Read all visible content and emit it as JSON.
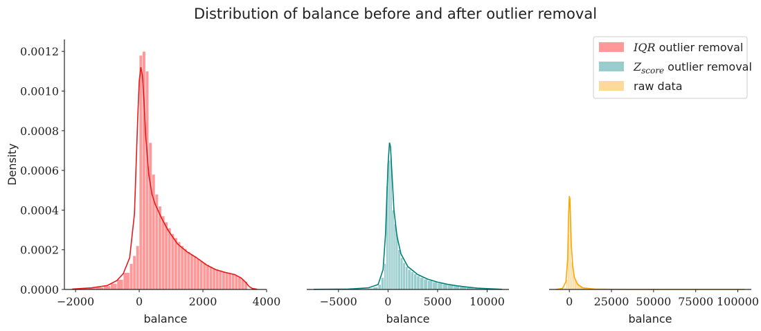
{
  "figure_title": "Distribution of balance before and after outlier removal",
  "legend": {
    "placement": "top-right",
    "entries": [
      {
        "math": "IQR",
        "sub": "",
        "text": " outlier removal",
        "color": "#ff9999"
      },
      {
        "math": "Z",
        "sub": "score",
        "text": " outlier removal",
        "color": "#99cccc"
      },
      {
        "math": "",
        "sub": "",
        "text": "raw data",
        "color": "#ffd99a"
      }
    ]
  },
  "chart_data": [
    {
      "type": "area",
      "title": "",
      "xlabel": "balance",
      "ylabel": "Density",
      "xlim": [
        -2350,
        4000
      ],
      "ylim": [
        0,
        0.00126
      ],
      "xticks": [
        -2000,
        0,
        2000,
        4000
      ],
      "xtick_labels": [
        "−2000",
        "0",
        "2000",
        "4000"
      ],
      "yticks": [
        0,
        0.0002,
        0.0004,
        0.0006,
        0.0008,
        0.001,
        0.0012
      ],
      "ytick_labels": [
        "0.0000",
        "0.0002",
        "0.0004",
        "0.0006",
        "0.0008",
        "0.0010",
        "0.0012"
      ],
      "series": [
        {
          "name": "IQR outlier removal",
          "hist_color": "#ff9999",
          "line_color": "#e41a1c",
          "bins": [
            {
              "x": -2125,
              "w": 250,
              "y": 5e-06
            },
            {
              "x": -1875,
              "w": 250,
              "y": 7e-06
            },
            {
              "x": -1625,
              "w": 250,
              "y": 9e-06
            },
            {
              "x": -1375,
              "w": 250,
              "y": 1.2e-05
            },
            {
              "x": -1125,
              "w": 250,
              "y": 1.8e-05
            },
            {
              "x": -900,
              "w": 200,
              "y": 3e-05
            },
            {
              "x": -700,
              "w": 200,
              "y": 5e-05
            },
            {
              "x": -500,
              "w": 200,
              "y": 8.5e-05
            },
            {
              "x": -300,
              "w": 100,
              "y": 0.00013
            },
            {
              "x": -200,
              "w": 100,
              "y": 0.00017
            },
            {
              "x": -100,
              "w": 100,
              "y": 0.00022
            },
            {
              "x": 0,
              "w": 100,
              "y": 0.00118
            },
            {
              "x": 100,
              "w": 100,
              "y": 0.0012
            },
            {
              "x": 200,
              "w": 100,
              "y": 0.0011
            },
            {
              "x": 300,
              "w": 100,
              "y": 0.00074
            },
            {
              "x": 400,
              "w": 100,
              "y": 0.00058
            },
            {
              "x": 500,
              "w": 100,
              "y": 0.00048
            },
            {
              "x": 600,
              "w": 100,
              "y": 0.00042
            },
            {
              "x": 700,
              "w": 100,
              "y": 0.00037
            },
            {
              "x": 800,
              "w": 100,
              "y": 0.00034
            },
            {
              "x": 900,
              "w": 100,
              "y": 0.00031
            },
            {
              "x": 1000,
              "w": 100,
              "y": 0.00028
            },
            {
              "x": 1100,
              "w": 100,
              "y": 0.00026
            },
            {
              "x": 1200,
              "w": 100,
              "y": 0.00024
            },
            {
              "x": 1300,
              "w": 100,
              "y": 0.00022
            },
            {
              "x": 1400,
              "w": 100,
              "y": 0.000205
            },
            {
              "x": 1500,
              "w": 100,
              "y": 0.00019
            },
            {
              "x": 1600,
              "w": 100,
              "y": 0.000178
            },
            {
              "x": 1700,
              "w": 100,
              "y": 0.000168
            },
            {
              "x": 1800,
              "w": 100,
              "y": 0.000155
            },
            {
              "x": 1900,
              "w": 100,
              "y": 0.000145
            },
            {
              "x": 2000,
              "w": 100,
              "y": 0.000135
            },
            {
              "x": 2100,
              "w": 100,
              "y": 0.000125
            },
            {
              "x": 2200,
              "w": 100,
              "y": 0.000116
            },
            {
              "x": 2300,
              "w": 100,
              "y": 0.000108
            },
            {
              "x": 2400,
              "w": 100,
              "y": 0.000102
            },
            {
              "x": 2500,
              "w": 100,
              "y": 9.7e-05
            },
            {
              "x": 2600,
              "w": 100,
              "y": 9.2e-05
            },
            {
              "x": 2700,
              "w": 100,
              "y": 8.7e-05
            },
            {
              "x": 2800,
              "w": 100,
              "y": 8.2e-05
            },
            {
              "x": 2900,
              "w": 100,
              "y": 7.7e-05
            },
            {
              "x": 3000,
              "w": 100,
              "y": 7.1e-05
            },
            {
              "x": 3100,
              "w": 100,
              "y": 6.2e-05
            },
            {
              "x": 3200,
              "w": 100,
              "y": 5.2e-05
            },
            {
              "x": 3300,
              "w": 100,
              "y": 4e-05
            }
          ],
          "kde_x": [
            -2100,
            -1500,
            -1000,
            -700,
            -500,
            -300,
            -150,
            -50,
            0,
            50,
            100,
            150,
            200,
            300,
            400,
            500,
            700,
            900,
            1200,
            1500,
            1800,
            2100,
            2400,
            2700,
            3000,
            3200,
            3350,
            3450,
            3550,
            3700
          ],
          "kde_y": [
            2e-06,
            8e-06,
            2e-05,
            4.5e-05,
            8e-05,
            0.00016,
            0.00038,
            0.00085,
            0.00105,
            0.00112,
            0.00108,
            0.00095,
            0.00078,
            0.00058,
            0.00048,
            0.00043,
            0.00036,
            0.0003,
            0.00023,
            0.00019,
            0.00016,
            0.000125,
            0.0001,
            8.6e-05,
            7.5e-05,
            5.8e-05,
            3.5e-05,
            1.5e-05,
            5e-06,
            1e-06
          ]
        }
      ]
    },
    {
      "type": "area",
      "title": "",
      "xlabel": "balance",
      "ylabel": "",
      "xlim": [
        -8200,
        12200
      ],
      "ylim": [
        0,
        0.00126
      ],
      "xticks": [
        -5000,
        0,
        5000,
        10000
      ],
      "xtick_labels": [
        "−5000",
        "0",
        "5000",
        "10000"
      ],
      "yticks": [],
      "ytick_labels": [],
      "series": [
        {
          "name": "Zscore outlier removal",
          "hist_color": "#99cccc",
          "line_color": "#00807a",
          "bins": [
            {
              "x": -2000,
              "w": 500,
              "y": 6e-06
            },
            {
              "x": -1500,
              "w": 500,
              "y": 1.2e-05
            },
            {
              "x": -1000,
              "w": 300,
              "y": 2.5e-05
            },
            {
              "x": -700,
              "w": 300,
              "y": 6e-05
            },
            {
              "x": -400,
              "w": 200,
              "y": 0.00013
            },
            {
              "x": -200,
              "w": 200,
              "y": 0.00052
            },
            {
              "x": 0,
              "w": 200,
              "y": 0.00065
            },
            {
              "x": 200,
              "w": 200,
              "y": 0.00066
            },
            {
              "x": 400,
              "w": 200,
              "y": 0.0004
            },
            {
              "x": 600,
              "w": 200,
              "y": 0.00033
            },
            {
              "x": 800,
              "w": 200,
              "y": 0.00028
            },
            {
              "x": 1000,
              "w": 250,
              "y": 0.0002
            },
            {
              "x": 1250,
              "w": 250,
              "y": 0.00016
            },
            {
              "x": 1500,
              "w": 250,
              "y": 0.000135
            },
            {
              "x": 1750,
              "w": 250,
              "y": 0.000115
            },
            {
              "x": 2000,
              "w": 300,
              "y": 0.0001
            },
            {
              "x": 2300,
              "w": 300,
              "y": 8.8e-05
            },
            {
              "x": 2600,
              "w": 300,
              "y": 7.8e-05
            },
            {
              "x": 2900,
              "w": 300,
              "y": 6.8e-05
            },
            {
              "x": 3200,
              "w": 400,
              "y": 6e-05
            },
            {
              "x": 3600,
              "w": 400,
              "y": 5.2e-05
            },
            {
              "x": 4000,
              "w": 500,
              "y": 4.5e-05
            },
            {
              "x": 4500,
              "w": 500,
              "y": 3.8e-05
            },
            {
              "x": 5000,
              "w": 500,
              "y": 3.2e-05
            },
            {
              "x": 5500,
              "w": 500,
              "y": 2.7e-05
            },
            {
              "x": 6000,
              "w": 600,
              "y": 2.2e-05
            },
            {
              "x": 6600,
              "w": 600,
              "y": 1.8e-05
            },
            {
              "x": 7200,
              "w": 700,
              "y": 1.4e-05
            },
            {
              "x": 7900,
              "w": 800,
              "y": 1e-05
            },
            {
              "x": 8700,
              "w": 900,
              "y": 7e-06
            },
            {
              "x": 9600,
              "w": 1000,
              "y": 5e-06
            }
          ],
          "kde_x": [
            -7500,
            -4000,
            -2000,
            -1000,
            -500,
            -250,
            0,
            150,
            250,
            400,
            600,
            900,
            1300,
            2000,
            3000,
            4000,
            5000,
            6000,
            7000,
            8000,
            9000,
            10000,
            11000,
            11500
          ],
          "kde_y": [
            5e-07,
            2e-06,
            8e-06,
            2.5e-05,
            0.0001,
            0.00028,
            0.00063,
            0.00074,
            0.00072,
            0.00058,
            0.0004,
            0.00027,
            0.00018,
            0.000115,
            7.5e-05,
            5.2e-05,
            3.7e-05,
            2.6e-05,
            1.8e-05,
            1.2e-05,
            7e-06,
            4e-06,
            2e-06,
            5e-07
          ]
        }
      ]
    },
    {
      "type": "area",
      "title": "",
      "xlabel": "balance",
      "ylabel": "",
      "xlim": [
        -12000,
        108000
      ],
      "ylim": [
        0,
        0.00126
      ],
      "xticks": [
        0,
        25000,
        50000,
        75000,
        100000
      ],
      "xtick_labels": [
        "0",
        "25000",
        "50000",
        "75000",
        "100000"
      ],
      "yticks": [],
      "ytick_labels": [],
      "series": [
        {
          "name": "raw data",
          "hist_color": "#ffd99a",
          "line_color": "#ffa500",
          "bins": [
            {
              "x": -3000,
              "w": 1000,
              "y": 1e-05
            },
            {
              "x": -2000,
              "w": 1000,
              "y": 5e-05
            },
            {
              "x": -1000,
              "w": 1000,
              "y": 0.00028
            },
            {
              "x": 0,
              "w": 1000,
              "y": 0.00046
            },
            {
              "x": 1000,
              "w": 1000,
              "y": 0.00014
            },
            {
              "x": 2000,
              "w": 1000,
              "y": 9e-05
            },
            {
              "x": 3000,
              "w": 1500,
              "y": 5e-05
            },
            {
              "x": 4500,
              "w": 1500,
              "y": 3e-05
            },
            {
              "x": 6000,
              "w": 2000,
              "y": 1.5e-05
            },
            {
              "x": 8000,
              "w": 3000,
              "y": 8e-06
            },
            {
              "x": 11000,
              "w": 5000,
              "y": 4e-06
            }
          ],
          "kde_x": [
            -8000,
            -4000,
            -2000,
            -1000,
            -500,
            0,
            300,
            700,
            1200,
            2000,
            3000,
            5000,
            8000,
            15000,
            30000,
            60000,
            104000
          ],
          "kde_y": [
            5e-07,
            5e-06,
            4e-05,
            0.00015,
            0.00035,
            0.00047,
            0.00046,
            0.00036,
            0.00022,
            0.00012,
            6e-05,
            2.5e-05,
            8e-06,
            2e-06,
            7e-07,
            3e-07,
            1e-07
          ]
        }
      ]
    }
  ]
}
